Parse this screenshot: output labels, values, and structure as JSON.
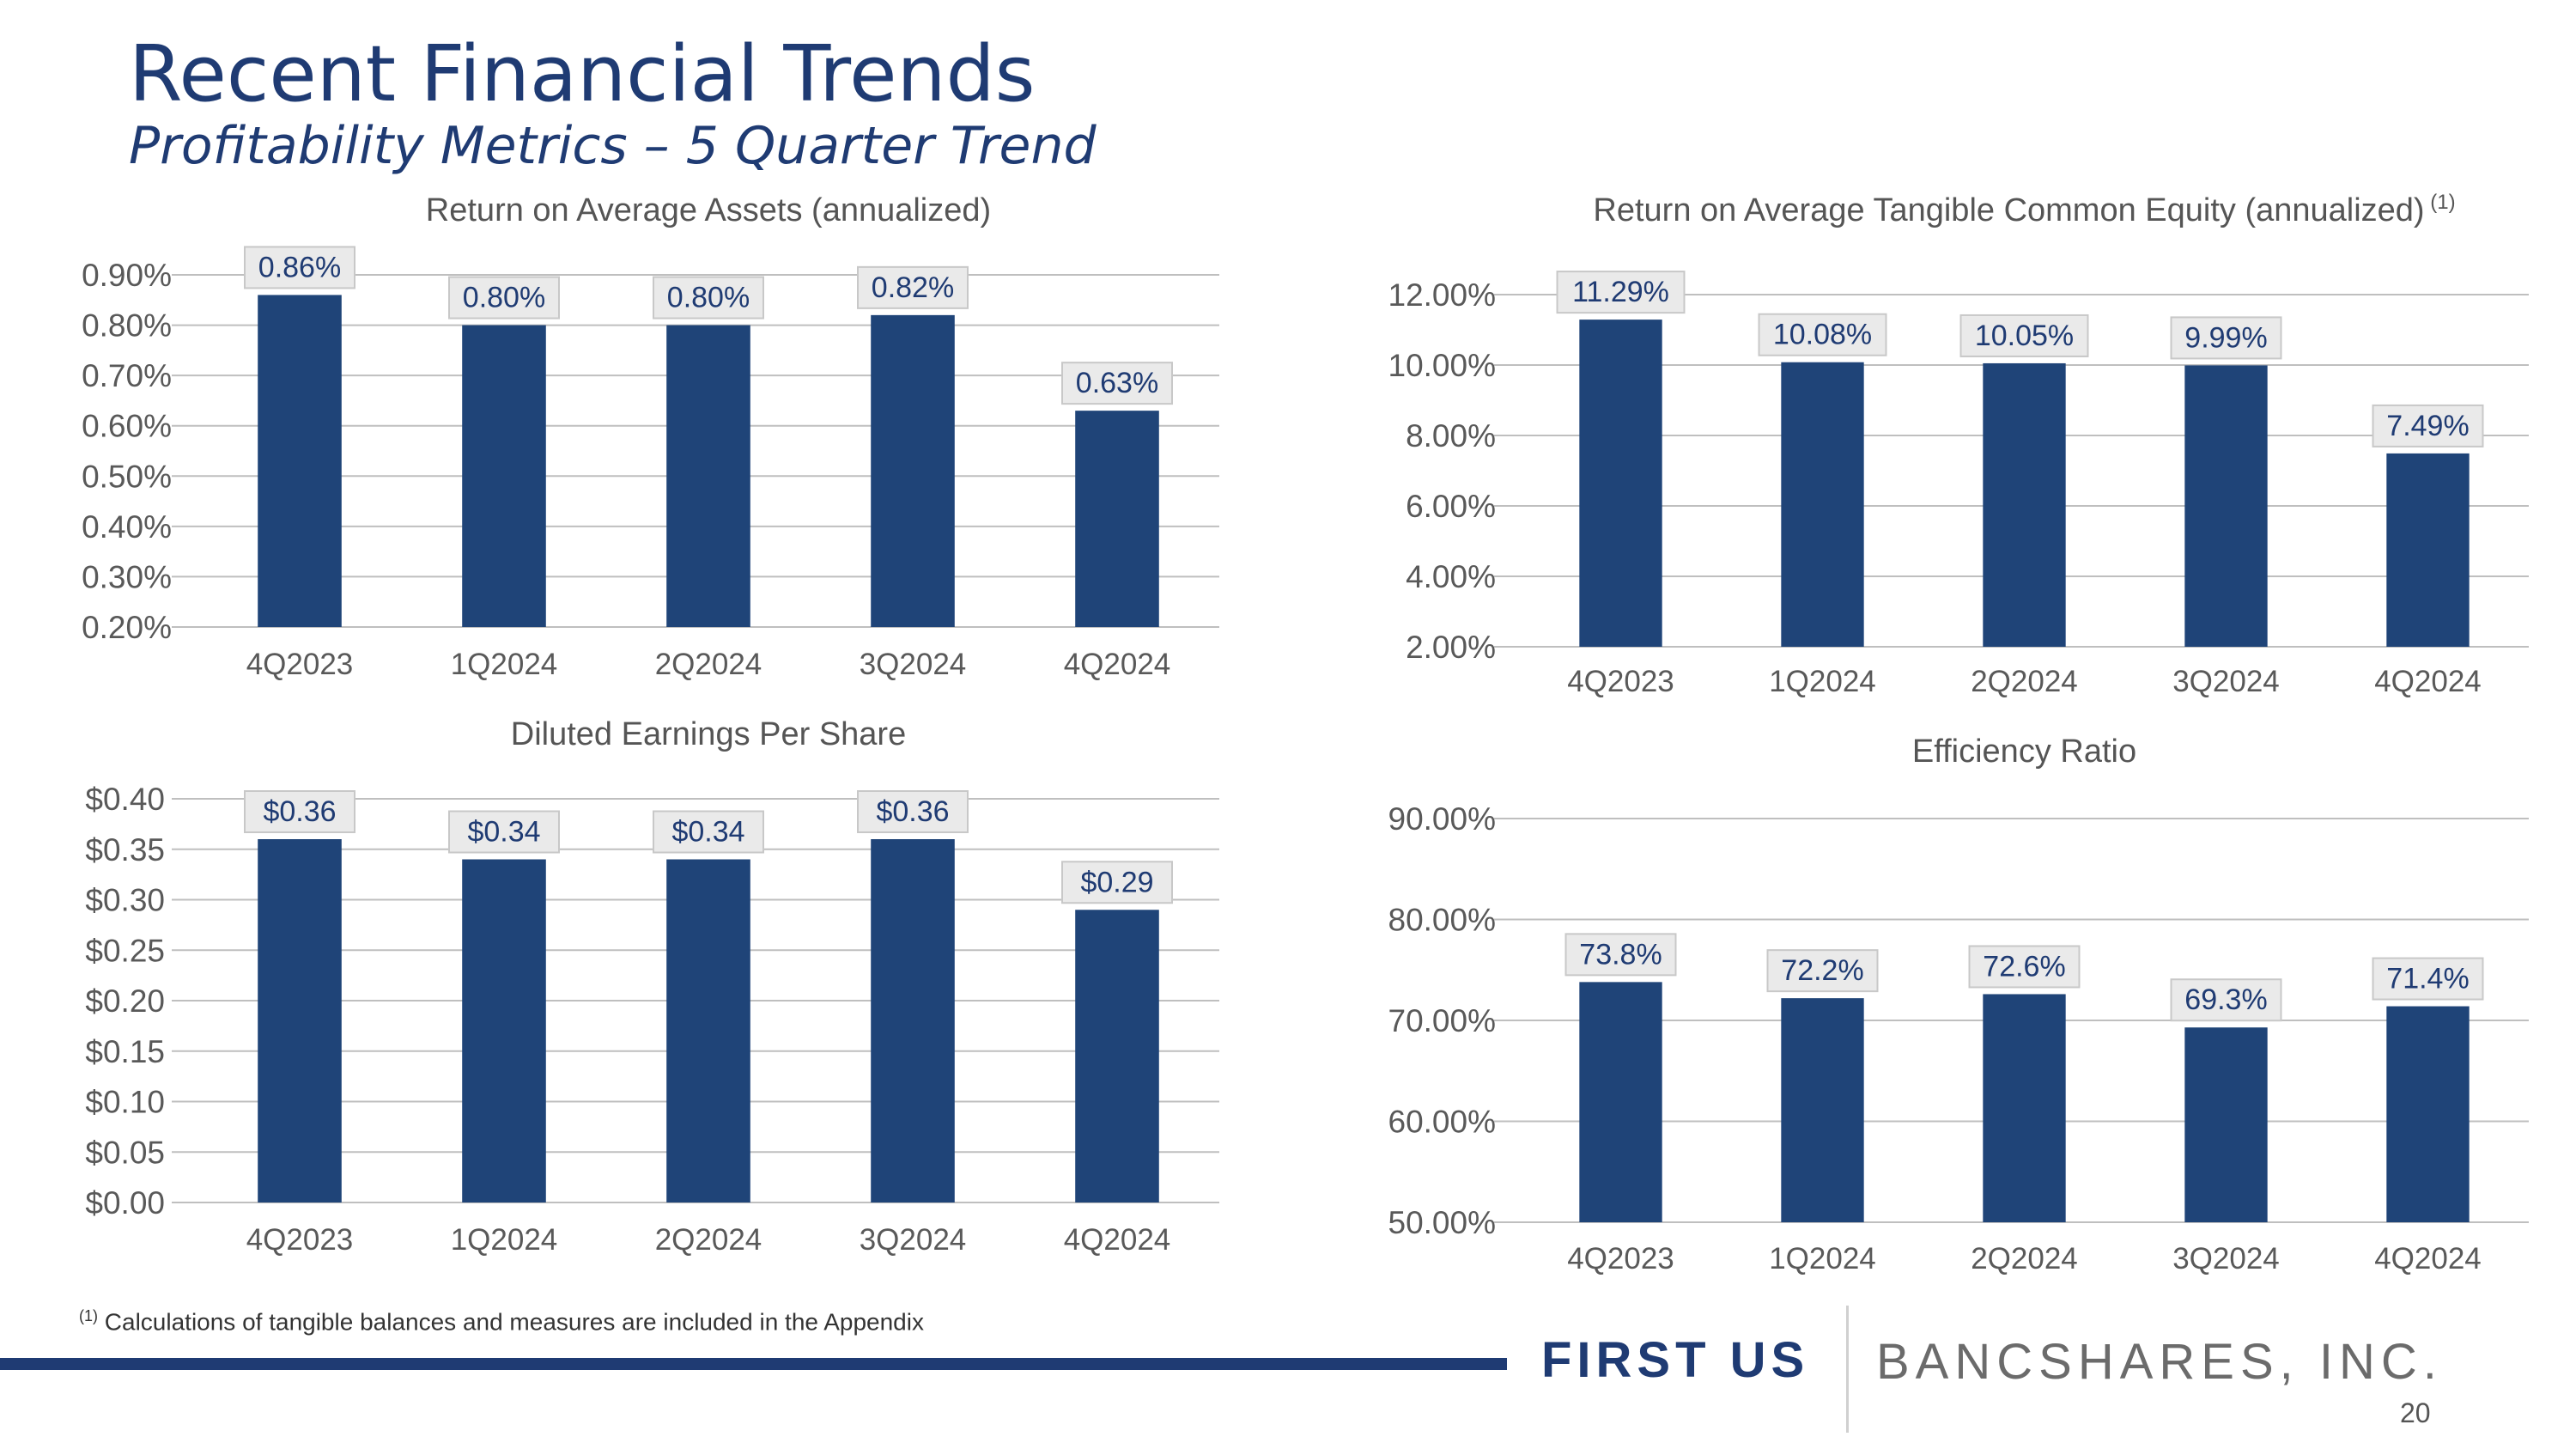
{
  "header": {
    "title": "Recent Financial Trends",
    "subtitle": "Profitability Metrics – 5 Quarter Trend"
  },
  "footer": {
    "footnote_marker": "(1)",
    "footnote_text": "Calculations of tangible balances and measures are included in the Appendix",
    "logo_first": "FIRST US",
    "logo_rest": "BANCSHARES, INC.",
    "page_number": "20"
  },
  "colors": {
    "bar": "#1f4478",
    "title": "#1f3b73",
    "label_bg": "#eaeaea",
    "grid": "#bfbfbf"
  },
  "chart_data": [
    {
      "id": "roaa",
      "type": "bar",
      "title": "Return on Average Assets (annualized)",
      "title_sup": "",
      "categories": [
        "4Q2023",
        "1Q2024",
        "2Q2024",
        "3Q2024",
        "4Q2024"
      ],
      "values": [
        0.86,
        0.8,
        0.8,
        0.82,
        0.63
      ],
      "value_labels": [
        "0.86%",
        "0.80%",
        "0.80%",
        "0.82%",
        "0.63%"
      ],
      "ylim": [
        0.2,
        0.9
      ],
      "yticks": [
        0.2,
        0.3,
        0.4,
        0.5,
        0.6,
        0.7,
        0.8,
        0.9
      ],
      "ytick_labels": [
        "0.20%",
        "0.30%",
        "0.40%",
        "0.50%",
        "0.60%",
        "0.70%",
        "0.80%",
        "0.90%"
      ],
      "xlabel": "",
      "ylabel": ""
    },
    {
      "id": "rotce",
      "type": "bar",
      "title": "Return on Average Tangible Common Equity (annualized)",
      "title_sup": "(1)",
      "categories": [
        "4Q2023",
        "1Q2024",
        "2Q2024",
        "3Q2024",
        "4Q2024"
      ],
      "values": [
        11.29,
        10.08,
        10.05,
        9.99,
        7.49
      ],
      "value_labels": [
        "11.29%",
        "10.08%",
        "10.05%",
        "9.99%",
        "7.49%"
      ],
      "ylim": [
        2.0,
        12.0
      ],
      "yticks": [
        2,
        4,
        6,
        8,
        10,
        12
      ],
      "ytick_labels": [
        "2.00%",
        "4.00%",
        "6.00%",
        "8.00%",
        "10.00%",
        "12.00%"
      ],
      "xlabel": "",
      "ylabel": ""
    },
    {
      "id": "eps",
      "type": "bar",
      "title": "Diluted Earnings Per Share",
      "title_sup": "",
      "categories": [
        "4Q2023",
        "1Q2024",
        "2Q2024",
        "3Q2024",
        "4Q2024"
      ],
      "values": [
        0.36,
        0.34,
        0.34,
        0.36,
        0.29
      ],
      "value_labels": [
        "$0.36",
        "$0.34",
        "$0.34",
        "$0.36",
        "$0.29"
      ],
      "ylim": [
        0.0,
        0.4
      ],
      "yticks": [
        0,
        0.05,
        0.1,
        0.15,
        0.2,
        0.25,
        0.3,
        0.35,
        0.4
      ],
      "ytick_labels": [
        "$0.00",
        "$0.05",
        "$0.10",
        "$0.15",
        "$0.20",
        "$0.25",
        "$0.30",
        "$0.35",
        "$0.40"
      ],
      "xlabel": "",
      "ylabel": ""
    },
    {
      "id": "efficiency",
      "type": "bar",
      "title": "Efficiency Ratio",
      "title_sup": "",
      "categories": [
        "4Q2023",
        "1Q2024",
        "2Q2024",
        "3Q2024",
        "4Q2024"
      ],
      "values": [
        73.8,
        72.2,
        72.6,
        69.3,
        71.4
      ],
      "value_labels": [
        "73.8%",
        "72.2%",
        "72.6%",
        "69.3%",
        "71.4%"
      ],
      "ylim": [
        50,
        90
      ],
      "yticks": [
        50,
        60,
        70,
        80,
        90
      ],
      "ytick_labels": [
        "50.00%",
        "60.00%",
        "70.00%",
        "80.00%",
        "90.00%"
      ],
      "xlabel": "",
      "ylabel": ""
    }
  ]
}
